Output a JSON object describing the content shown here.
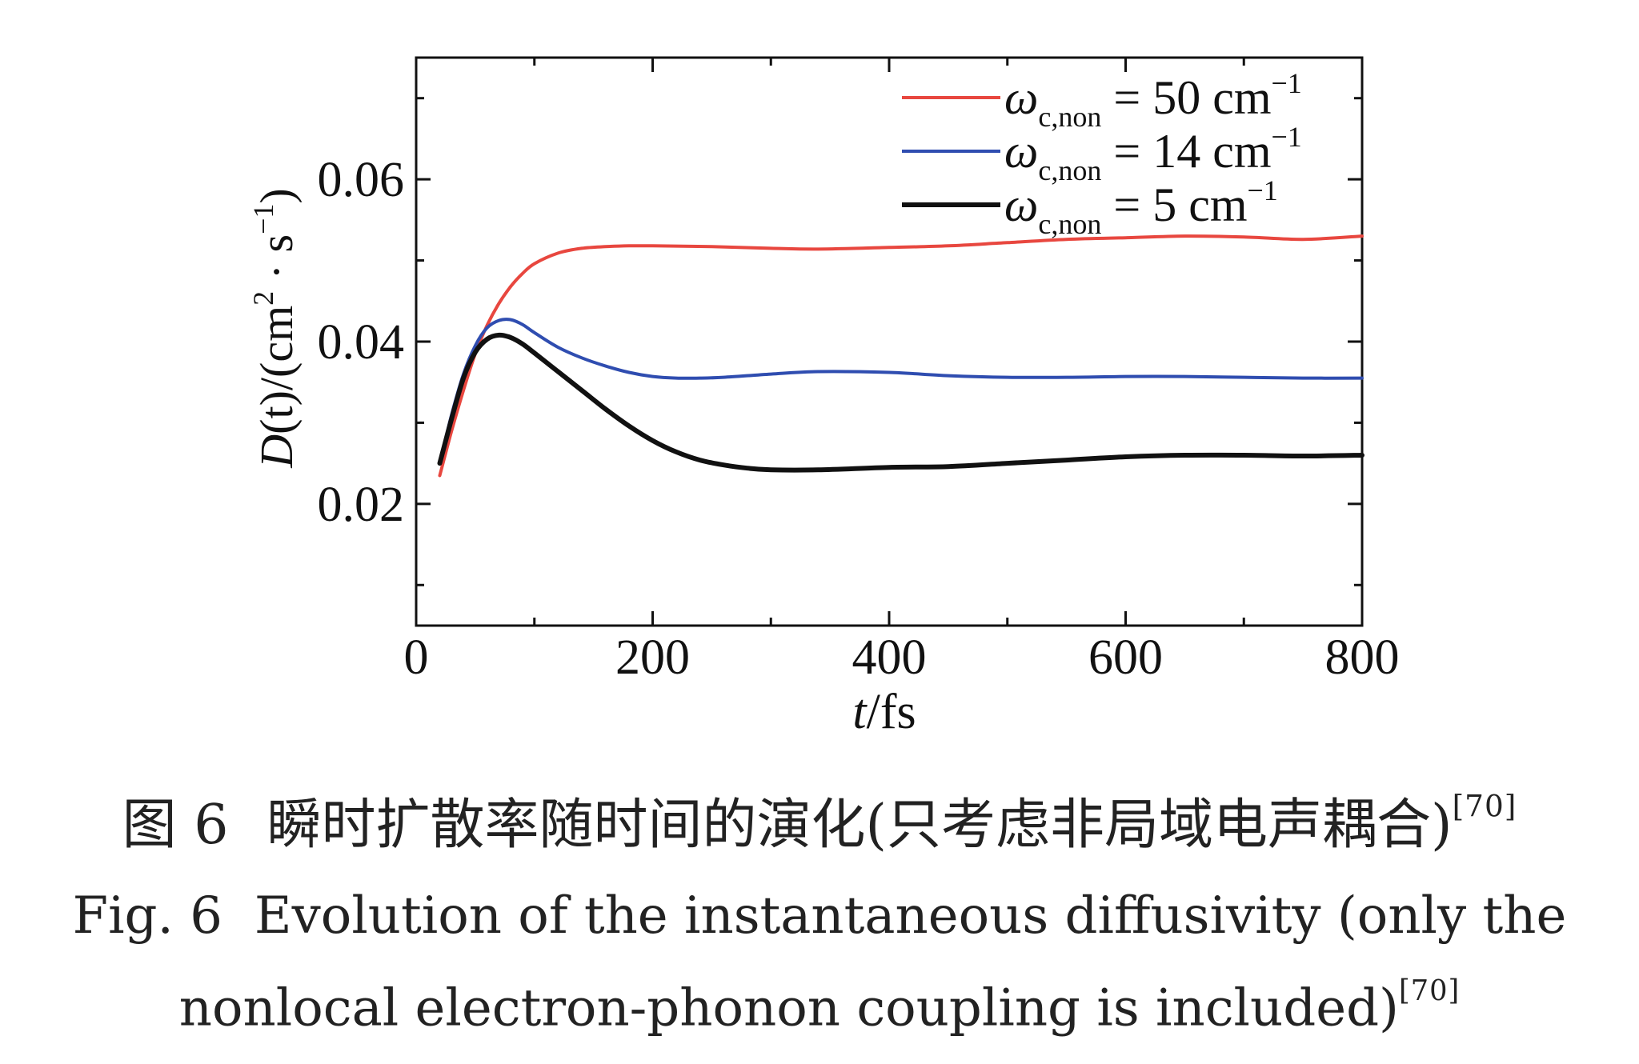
{
  "chart_data": {
    "type": "line",
    "xlabel_italic": "t",
    "xlabel_rest": "/fs",
    "ylabel_italic": "D",
    "ylabel_rest_a": "(t)/(cm",
    "ylabel_sup_1": "2",
    "ylabel_rest_b": " · s",
    "ylabel_sup_2": "−1",
    "ylabel_rest_c": ")",
    "xlim": [
      0,
      800
    ],
    "ylim": [
      0.005,
      0.075
    ],
    "xticks": [
      0,
      200,
      400,
      600,
      800
    ],
    "xtick_labels": [
      "0",
      "200",
      "400",
      "600",
      "800"
    ],
    "yticks": [
      0.02,
      0.04,
      0.06
    ],
    "ytick_labels": [
      "0.02",
      "0.04",
      "0.06"
    ],
    "legend_position": "top-right",
    "series": [
      {
        "legend_base": "ω",
        "legend_sub": "c,non",
        "legend_value": " = 50 cm",
        "legend_sup": "−1",
        "color": "#e8473f",
        "x": [
          20,
          30,
          40,
          50,
          60,
          70,
          80,
          90,
          100,
          120,
          140,
          160,
          180,
          200,
          250,
          300,
          340,
          400,
          450,
          500,
          550,
          600,
          650,
          700,
          750,
          800
        ],
        "y": [
          0.0235,
          0.029,
          0.034,
          0.0385,
          0.042,
          0.0447,
          0.0468,
          0.0484,
          0.0496,
          0.0509,
          0.0515,
          0.0517,
          0.0518,
          0.0518,
          0.0517,
          0.0515,
          0.0514,
          0.0516,
          0.0518,
          0.0522,
          0.0526,
          0.0528,
          0.053,
          0.0529,
          0.0526,
          0.053
        ]
      },
      {
        "legend_base": "ω",
        "legend_sub": "c,non",
        "legend_value": " = 14 cm",
        "legend_sup": "−1",
        "color": "#2f4db0",
        "x": [
          20,
          30,
          40,
          50,
          60,
          70,
          80,
          90,
          100,
          120,
          140,
          160,
          180,
          200,
          220,
          240,
          260,
          300,
          340,
          400,
          450,
          500,
          550,
          600,
          650,
          700,
          750,
          800
        ],
        "y": [
          0.025,
          0.031,
          0.036,
          0.0395,
          0.0417,
          0.0426,
          0.0427,
          0.0421,
          0.0411,
          0.0393,
          0.038,
          0.037,
          0.0362,
          0.0357,
          0.0355,
          0.0355,
          0.0356,
          0.036,
          0.0363,
          0.0362,
          0.0358,
          0.0356,
          0.0356,
          0.0357,
          0.0357,
          0.0356,
          0.0355,
          0.0355
        ]
      },
      {
        "legend_base": "ω",
        "legend_sub": "c,non",
        "legend_value": " = 5 cm",
        "legend_sup": "−1",
        "color": "#111111",
        "x": [
          20,
          30,
          40,
          50,
          60,
          70,
          80,
          90,
          100,
          120,
          140,
          160,
          180,
          200,
          220,
          240,
          260,
          280,
          300,
          340,
          400,
          450,
          500,
          550,
          600,
          650,
          700,
          750,
          800
        ],
        "y": [
          0.025,
          0.0305,
          0.0355,
          0.0387,
          0.0403,
          0.0408,
          0.0405,
          0.0397,
          0.0386,
          0.0363,
          0.034,
          0.0317,
          0.0296,
          0.0278,
          0.0264,
          0.0254,
          0.0248,
          0.0244,
          0.0242,
          0.0242,
          0.0245,
          0.0246,
          0.025,
          0.0254,
          0.0258,
          0.026,
          0.026,
          0.0259,
          0.026
        ]
      }
    ]
  },
  "caption": {
    "zh_label": "图 6",
    "zh_text": "瞬时扩散率随时间的演化(只考虑非局域电声耦合)",
    "zh_ref": "[70]",
    "en_label": "Fig. 6",
    "en_text_1": "Evolution of the instantaneous diffusivity (only the",
    "en_text_2": "nonlocal electron-phonon coupling is included)",
    "en_ref": "[70]"
  }
}
